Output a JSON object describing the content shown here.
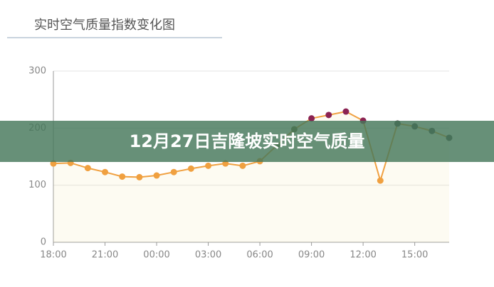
{
  "chart_data": {
    "type": "line",
    "title": "实时空气质量指数变化图",
    "x": [
      0,
      1,
      2,
      3,
      4,
      5,
      6,
      7,
      8,
      9,
      10,
      11,
      12,
      13,
      14,
      15,
      16,
      17,
      18,
      19,
      20,
      21,
      22,
      23
    ],
    "series": [
      {
        "color": "#f0a040",
        "values": [
          138,
          139,
          130,
          123,
          115,
          114,
          117,
          123,
          129,
          134,
          138,
          134,
          142,
          170,
          198,
          217,
          223,
          229,
          213,
          108,
          208,
          203,
          195,
          183
        ],
        "point_colors": [
          "#f0a040",
          "#f0a040",
          "#f0a040",
          "#f0a040",
          "#f0a040",
          "#f0a040",
          "#f0a040",
          "#f0a040",
          "#f0a040",
          "#f0a040",
          "#f0a040",
          "#f0a040",
          "#f0a040",
          "#6b6b3a",
          "#6b6b3a",
          "#8b2252",
          "#8b2252",
          "#8b2252",
          "#8b2252",
          "#f0a040",
          "#505050",
          "#505050",
          "#505050",
          "#505050"
        ]
      }
    ],
    "xlim": [
      0,
      23
    ],
    "xticks": [
      {
        "value": 0,
        "label": "18:00"
      },
      {
        "value": 3,
        "label": "21:00"
      },
      {
        "value": 6,
        "label": "00:00"
      },
      {
        "value": 9,
        "label": "03:00"
      },
      {
        "value": 12,
        "label": "06:00"
      },
      {
        "value": 15,
        "label": "09:00"
      },
      {
        "value": 18,
        "label": "12:00"
      },
      {
        "value": 21,
        "label": "15:00"
      }
    ],
    "ylim": [
      0,
      300
    ],
    "yticks": [
      0,
      100,
      200,
      300
    ],
    "grid": true
  },
  "overlay": {
    "text": "12月27日吉隆坡实时空气质量"
  }
}
